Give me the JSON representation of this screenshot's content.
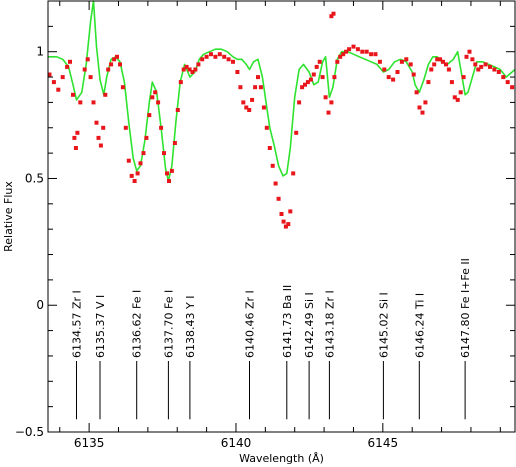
{
  "chart_data": {
    "type": "line",
    "title": "",
    "xlabel": "Wavelength (Å)",
    "ylabel": "Relative Flux",
    "xlim": [
      6133.6,
      6149.5
    ],
    "ylim": [
      -0.5,
      1.2
    ],
    "x_ticks": [
      6135,
      6140,
      6145
    ],
    "x_tick_labels": [
      "6135",
      "6140",
      "6145"
    ],
    "y_ticks": [
      -0.5,
      0,
      0.5,
      1
    ],
    "y_tick_labels": [
      "−0.5",
      "0",
      "0.5",
      "1"
    ],
    "grid": false,
    "legend": "none",
    "colors": {
      "observed": "#e8151b",
      "synthetic": "#2ee32e",
      "axes": "#000000"
    },
    "line_ids": [
      {
        "wavelength": 6134.57,
        "label": "6134.57 Zr I"
      },
      {
        "wavelength": 6135.37,
        "label": "6135.37 V I"
      },
      {
        "wavelength": 6136.62,
        "label": "6136.62 Fe I"
      },
      {
        "wavelength": 6137.7,
        "label": "6137.70 Fe I"
      },
      {
        "wavelength": 6138.43,
        "label": "6138.43 Y I"
      },
      {
        "wavelength": 6140.46,
        "label": "6140.46 Zr I"
      },
      {
        "wavelength": 6141.73,
        "label": "6141.73 Ba II"
      },
      {
        "wavelength": 6142.49,
        "label": "6142.49 Si I"
      },
      {
        "wavelength": 6143.18,
        "label": "6143.18 Zr I"
      },
      {
        "wavelength": 6145.02,
        "label": "6145.02 Si I"
      },
      {
        "wavelength": 6146.24,
        "label": "6146.24 Ti I"
      },
      {
        "wavelength": 6147.8,
        "label": "6147.80 Fe I+Fe II"
      }
    ],
    "line_id_marker_y": [
      -0.22,
      -0.45
    ],
    "synthetic_spectrum": {
      "x": [
        6133.6,
        6133.9,
        6134.1,
        6134.3,
        6134.45,
        6134.57,
        6134.75,
        6134.9,
        6135.05,
        6135.15,
        6135.25,
        6135.37,
        6135.5,
        6135.6,
        6135.75,
        6135.9,
        6136.05,
        6136.2,
        6136.35,
        6136.5,
        6136.62,
        6136.75,
        6136.9,
        6137.05,
        6137.15,
        6137.3,
        6137.45,
        6137.6,
        6137.7,
        6137.82,
        6137.95,
        6138.1,
        6138.25,
        6138.43,
        6138.6,
        6138.75,
        6138.9,
        6139.1,
        6139.3,
        6139.5,
        6139.7,
        6139.9,
        6140.05,
        6140.2,
        6140.35,
        6140.46,
        6140.6,
        6140.75,
        6140.9,
        6141.05,
        6141.15,
        6141.3,
        6141.45,
        6141.6,
        6141.73,
        6141.85,
        6142.0,
        6142.15,
        6142.3,
        6142.49,
        6142.65,
        6142.8,
        6142.95,
        6143.05,
        6143.18,
        6143.3,
        6143.45,
        6143.6,
        6143.8,
        6144.0,
        6144.2,
        6144.4,
        6144.6,
        6144.8,
        6145.02,
        6145.2,
        6145.4,
        6145.6,
        6145.8,
        6146.0,
        6146.1,
        6146.24,
        6146.4,
        6146.55,
        6146.7,
        6146.85,
        6147.0,
        6147.2,
        6147.4,
        6147.55,
        6147.7,
        6147.8,
        6147.9,
        6148.05,
        6148.2,
        6148.4,
        6148.6,
        6148.8,
        6149.0,
        6149.2,
        6149.5
      ],
      "y": [
        0.98,
        0.98,
        0.97,
        0.94,
        0.87,
        0.81,
        0.84,
        0.95,
        1.12,
        1.25,
        1.02,
        0.89,
        0.83,
        0.9,
        0.97,
        0.98,
        0.96,
        0.88,
        0.72,
        0.58,
        0.53,
        0.55,
        0.65,
        0.8,
        0.88,
        0.84,
        0.7,
        0.54,
        0.49,
        0.55,
        0.72,
        0.88,
        0.95,
        0.9,
        0.92,
        0.97,
        0.99,
        1.0,
        1.01,
        1.01,
        1.0,
        0.98,
        0.97,
        0.97,
        0.95,
        0.93,
        0.96,
        0.97,
        0.9,
        0.78,
        0.7,
        0.63,
        0.55,
        0.51,
        0.52,
        0.62,
        0.82,
        0.93,
        0.95,
        0.92,
        0.87,
        0.88,
        0.96,
        0.98,
        0.82,
        0.86,
        0.97,
        1.0,
        1.0,
        0.99,
        0.98,
        0.97,
        0.96,
        0.95,
        0.92,
        0.93,
        0.96,
        0.97,
        0.96,
        0.92,
        0.87,
        0.84,
        0.89,
        0.95,
        0.98,
        0.98,
        0.96,
        0.95,
        0.97,
        1.0,
        0.9,
        0.83,
        0.84,
        0.9,
        0.96,
        0.96,
        0.95,
        0.94,
        0.93,
        0.9,
        0.93
      ]
    },
    "observed_spectrum": {
      "x": [
        6133.65,
        6133.8,
        6133.95,
        6134.1,
        6134.25,
        6134.35,
        6134.45,
        6134.5,
        6134.55,
        6134.6,
        6134.7,
        6134.85,
        6134.95,
        6135.05,
        6135.15,
        6135.25,
        6135.32,
        6135.4,
        6135.48,
        6135.55,
        6135.65,
        6135.75,
        6135.85,
        6135.95,
        6136.05,
        6136.15,
        6136.25,
        6136.35,
        6136.45,
        6136.55,
        6136.65,
        6136.75,
        6136.85,
        6136.95,
        6137.05,
        6137.15,
        6137.25,
        6137.35,
        6137.45,
        6137.55,
        6137.65,
        6137.72,
        6137.82,
        6137.92,
        6138.02,
        6138.12,
        6138.22,
        6138.32,
        6138.42,
        6138.52,
        6138.62,
        6138.72,
        6138.85,
        6139.0,
        6139.15,
        6139.3,
        6139.45,
        6139.6,
        6139.75,
        6139.9,
        6140.05,
        6140.15,
        6140.25,
        6140.35,
        6140.45,
        6140.55,
        6140.65,
        6140.75,
        6140.85,
        6140.95,
        6141.05,
        6141.15,
        6141.25,
        6141.35,
        6141.45,
        6141.55,
        6141.62,
        6141.7,
        6141.78,
        6141.85,
        6141.95,
        6142.05,
        6142.15,
        6142.25,
        6142.35,
        6142.45,
        6142.55,
        6142.65,
        6142.75,
        6142.85,
        6142.95,
        6143.05,
        6143.15,
        6143.25,
        6143.35,
        6143.45,
        6143.55,
        6143.65,
        6143.75,
        6143.85,
        6144.0,
        6144.15,
        6144.3,
        6144.45,
        6144.6,
        6144.75,
        6144.9,
        6145.05,
        6145.2,
        6145.35,
        6145.5,
        6145.65,
        6145.8,
        6145.95,
        6146.05,
        6146.15,
        6146.25,
        6146.35,
        6146.45,
        6146.55,
        6146.65,
        6146.75,
        6146.85,
        6146.95,
        6147.05,
        6147.15,
        6147.25,
        6147.35,
        6147.45,
        6147.55,
        6147.65,
        6147.75,
        6147.85,
        6147.95,
        6148.05,
        6148.15,
        6148.25,
        6148.35,
        6148.5,
        6148.65,
        6148.8,
        6148.95,
        6149.1,
        6149.25,
        6149.4
      ],
      "y": [
        0.91,
        0.88,
        0.85,
        0.9,
        0.94,
        0.96,
        0.83,
        0.66,
        0.62,
        0.68,
        0.8,
        0.93,
        0.97,
        0.9,
        0.8,
        0.72,
        0.66,
        0.63,
        0.7,
        0.83,
        0.93,
        0.95,
        0.97,
        0.98,
        0.95,
        0.86,
        0.7,
        0.57,
        0.51,
        0.49,
        0.52,
        0.56,
        0.6,
        0.66,
        0.75,
        0.82,
        0.84,
        0.8,
        0.7,
        0.6,
        0.52,
        0.49,
        0.53,
        0.64,
        0.77,
        0.88,
        0.93,
        0.94,
        0.93,
        0.92,
        0.93,
        0.95,
        0.97,
        0.98,
        0.99,
        0.98,
        0.99,
        0.98,
        0.97,
        0.96,
        0.92,
        0.86,
        0.8,
        0.78,
        0.77,
        0.81,
        0.86,
        0.9,
        0.86,
        0.78,
        0.7,
        0.62,
        0.55,
        0.48,
        0.42,
        0.36,
        0.33,
        0.31,
        0.32,
        0.37,
        0.52,
        0.68,
        0.8,
        0.86,
        0.87,
        0.88,
        0.89,
        0.91,
        0.94,
        0.96,
        0.9,
        0.82,
        0.76,
        0.8,
        0.9,
        0.96,
        0.98,
        0.99,
        1.0,
        1.01,
        1.02,
        1.01,
        1.0,
        1.0,
        0.99,
        0.99,
        0.96,
        0.93,
        0.9,
        0.89,
        0.92,
        0.96,
        0.97,
        0.95,
        0.91,
        0.84,
        0.78,
        0.76,
        0.8,
        0.88,
        0.93,
        0.95,
        0.97,
        0.97,
        0.96,
        0.95,
        0.93,
        0.88,
        0.82,
        0.81,
        0.84,
        0.9,
        0.98,
        1.0,
        0.97,
        0.95,
        0.93,
        0.94,
        0.95,
        0.94,
        0.93,
        0.92,
        0.9,
        0.88,
        0.86
      ]
    },
    "observed_spectrum_outliers": {
      "x": [
        6143.25,
        6143.32
      ],
      "y": [
        1.14,
        1.15
      ]
    }
  }
}
